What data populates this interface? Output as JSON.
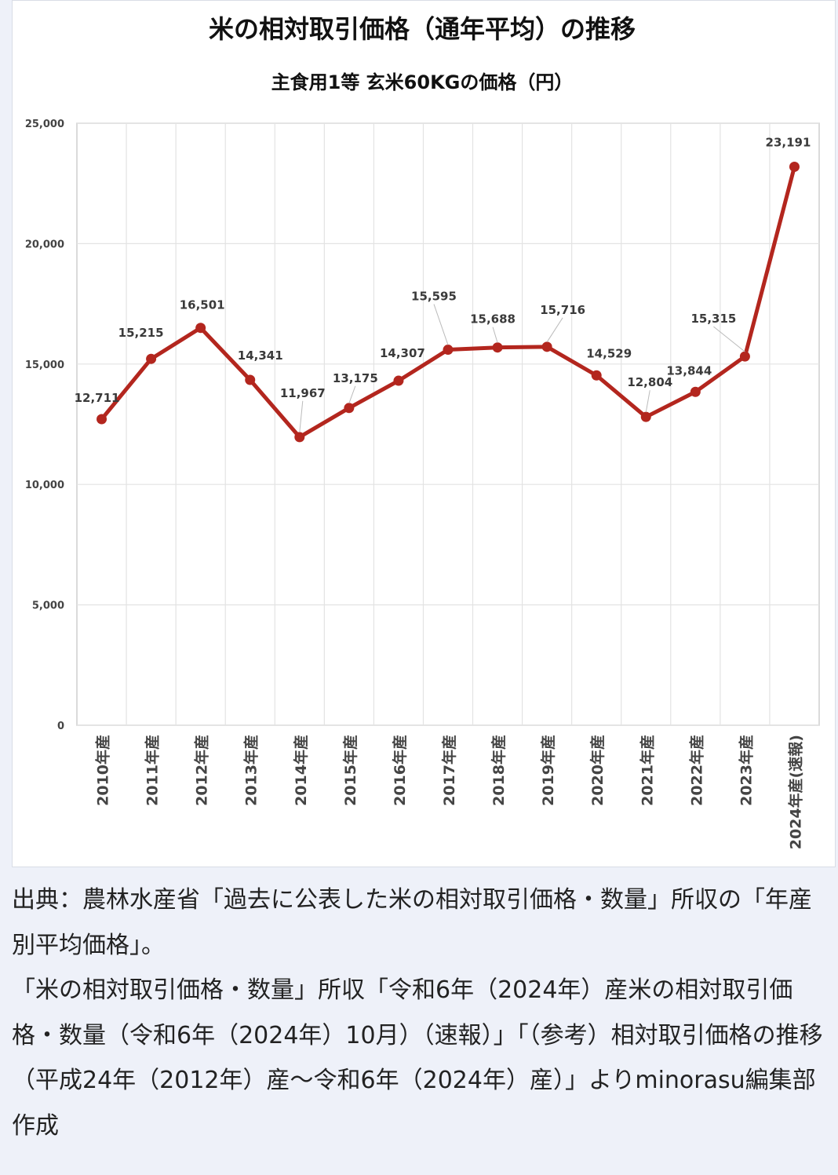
{
  "chart_data": {
    "type": "line",
    "title": "米の相対取引価格（通年平均）の推移",
    "subtitle": "主食用1等 玄米60KGの価格（円）",
    "categories": [
      "2010年産",
      "2011年産",
      "2012年産",
      "2013年産",
      "2014年産",
      "2015年産",
      "2016年産",
      "2017年産",
      "2018年産",
      "2019年産",
      "2020年産",
      "2021年産",
      "2022年産",
      "2023年産",
      "2024年産(速報)"
    ],
    "series": [
      {
        "values": [
          12711,
          15215,
          16501,
          14341,
          11967,
          13175,
          14307,
          15595,
          15688,
          15716,
          14529,
          12804,
          13844,
          15315,
          23191
        ]
      }
    ],
    "data_labels": [
      "12,711",
      "15,215",
      "16,501",
      "14,341",
      "11,967",
      "13,175",
      "14,307",
      "15,595",
      "15,688",
      "15,716",
      "14,529",
      "12,804",
      "13,844",
      "15,315",
      "23,191"
    ],
    "y_ticks": [
      "0",
      "5,000",
      "10,000",
      "15,000",
      "20,000",
      "25,000"
    ],
    "ylim": [
      0,
      25000
    ],
    "grid": true,
    "line_color": "#b3261e",
    "grid_color": "#e3e3e3"
  },
  "caption": {
    "line1": "出典：農林水産省「過去に公表した米の相対取引価格・数量」所収の「年産別平均価格」。",
    "line2": "「米の相対取引価格・数量」所収「令和6年（2024年）産米の相対取引価格・数量（令和6年（2024年）10月）（速報）」「（参考）相対取引価格の推移（平成24年（2012年）産～令和6年（2024年）産）」よりminorasu編集部作成"
  }
}
